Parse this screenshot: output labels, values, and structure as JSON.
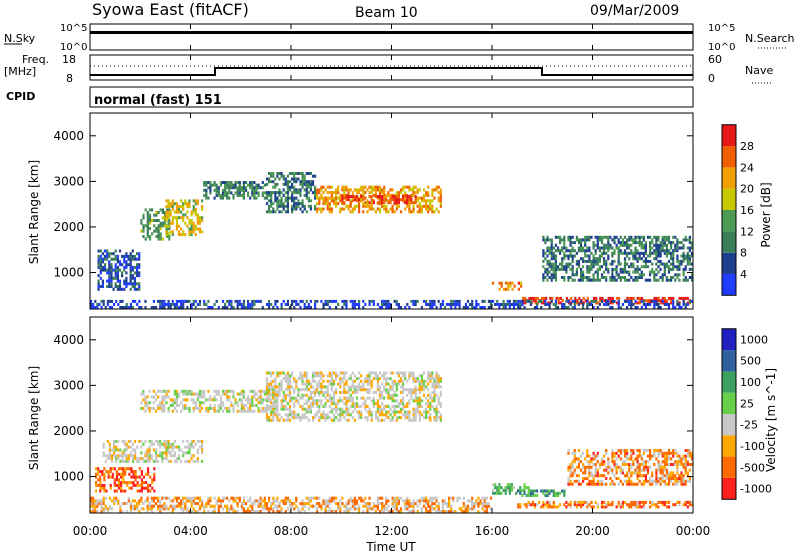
{
  "header": {
    "station": "Syowa East (fitACF)",
    "beam": "Beam 10",
    "date": "09/Mar/2009"
  },
  "status_panel": {
    "nsky_label": "N.Sky",
    "nsky_ticks": [
      "10^5",
      "10^0"
    ],
    "nsearch_label": "N.Search",
    "nsearch_ticks": [
      "10^5",
      "10^0"
    ],
    "freq_label": "Freq.",
    "freq_unit": "[MHz]",
    "freq_ticks": [
      "18",
      "8"
    ],
    "nave_label": "Nave",
    "nave_ticks": [
      "60",
      "0"
    ],
    "cpid_label": "CPID",
    "cpid_value": "normal (fast) 151"
  },
  "colors": {
    "power": [
      "#1f3cff",
      "#1f3f8f",
      "#3a7f5a",
      "#4c9a55",
      "#c8c800",
      "#f0a000",
      "#f06000",
      "#e81818"
    ],
    "velocity": [
      "#ff2020",
      "#ff6a00",
      "#ffa800",
      "#c8c8c8",
      "#66d04a",
      "#3aa060",
      "#3060a0",
      "#2020c0"
    ],
    "ground_scatter": "#c8c8c8"
  },
  "chart_data": [
    {
      "type": "heatmap",
      "name": "power-panel",
      "ylabel": "Slant Range [km]",
      "yticks": [
        "1000",
        "2000",
        "3000",
        "4000"
      ],
      "ylim": [
        200,
        4500
      ],
      "xlim": [
        0,
        24
      ],
      "colorbar_label": "Power [dB]",
      "colorbar_ticks": [
        "4",
        "8",
        "12",
        "16",
        "20",
        "24",
        "28"
      ],
      "colorbar_range": [
        0,
        32
      ],
      "regions": [
        {
          "t0": 0.3,
          "t1": 2.0,
          "r0": 600,
          "r1": 1500,
          "level": 0.2
        },
        {
          "t0": 2.0,
          "t1": 3.2,
          "r0": 1700,
          "r1": 2400,
          "level": 0.4
        },
        {
          "t0": 3.0,
          "t1": 4.5,
          "r0": 1800,
          "r1": 2600,
          "level": 0.6
        },
        {
          "t0": 4.5,
          "t1": 7.0,
          "r0": 2600,
          "r1": 3000,
          "level": 0.35
        },
        {
          "t0": 7.0,
          "t1": 9.0,
          "r0": 2300,
          "r1": 3200,
          "level": 0.3
        },
        {
          "t0": 9.0,
          "t1": 14.0,
          "r0": 2300,
          "r1": 2900,
          "level": 0.7
        },
        {
          "t0": 10.0,
          "t1": 13.0,
          "r0": 2500,
          "r1": 2700,
          "level": 0.9
        },
        {
          "t0": 16.0,
          "t1": 17.2,
          "r0": 600,
          "r1": 800,
          "level": 0.75
        },
        {
          "t0": 17.2,
          "t1": 24.0,
          "r0": 300,
          "r1": 450,
          "level": 0.9
        },
        {
          "t0": 18.0,
          "t1": 24.0,
          "r0": 800,
          "r1": 1800,
          "level": 0.3
        },
        {
          "t0": 0.0,
          "t1": 24.0,
          "r0": 200,
          "r1": 400,
          "level": 0.15
        }
      ]
    },
    {
      "type": "heatmap",
      "name": "velocity-panel",
      "xlabel": "Time UT",
      "xticks": [
        "00:00",
        "04:00",
        "08:00",
        "12:00",
        "16:00",
        "20:00",
        "00:00"
      ],
      "ylabel": "Slant Range [km]",
      "yticks": [
        "1000",
        "2000",
        "3000",
        "4000"
      ],
      "ylim": [
        200,
        4500
      ],
      "xlim": [
        0,
        24
      ],
      "colorbar_label": "Velocity [m s^-1]",
      "colorbar_ticks": [
        "1000",
        "500",
        "100",
        "25",
        "-25",
        "-100",
        "-500",
        "-1000"
      ],
      "regions": [
        {
          "t0": 0.2,
          "t1": 2.6,
          "r0": 650,
          "r1": 1200,
          "level": 0.15
        },
        {
          "t0": 0.5,
          "t1": 4.5,
          "r0": 1300,
          "r1": 1800,
          "level": 0.4
        },
        {
          "t0": 2.0,
          "t1": 7.5,
          "r0": 2400,
          "r1": 2900,
          "level": 0.4
        },
        {
          "t0": 7.0,
          "t1": 14.0,
          "r0": 2200,
          "r1": 3300,
          "level": 0.4
        },
        {
          "t0": 16.0,
          "t1": 17.5,
          "r0": 600,
          "r1": 850,
          "level": 0.6
        },
        {
          "t0": 17.0,
          "t1": 19.0,
          "r0": 550,
          "r1": 700,
          "level": 0.7
        },
        {
          "t0": 17.0,
          "t1": 24.0,
          "r0": 300,
          "r1": 450,
          "level": 0.22
        },
        {
          "t0": 19.0,
          "t1": 24.0,
          "r0": 800,
          "r1": 1600,
          "level": 0.25
        },
        {
          "t0": 0.0,
          "t1": 16.0,
          "r0": 200,
          "r1": 550,
          "level": 0.3
        }
      ]
    }
  ]
}
